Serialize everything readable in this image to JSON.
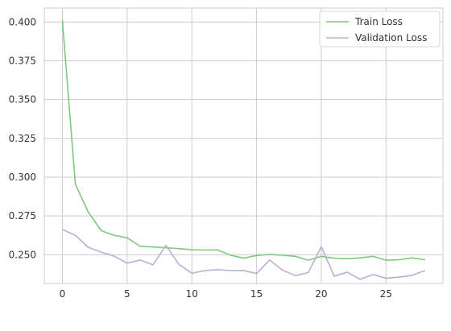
{
  "chart_data": {
    "type": "line",
    "title": "",
    "xlabel": "",
    "ylabel": "",
    "xlim": [
      -1.4,
      29.4
    ],
    "ylim": [
      0.2315,
      0.409
    ],
    "grid": true,
    "legend_position": "top-right",
    "x_ticks": [
      0,
      5,
      10,
      15,
      20,
      25
    ],
    "x_tick_labels": [
      "0",
      "5",
      "10",
      "15",
      "20",
      "25"
    ],
    "y_ticks": [
      0.25,
      0.275,
      0.3,
      0.325,
      0.35,
      0.375,
      0.4
    ],
    "y_tick_labels": [
      "0.250",
      "0.275",
      "0.300",
      "0.325",
      "0.350",
      "0.375",
      "0.400"
    ],
    "x": [
      0,
      1,
      2,
      3,
      4,
      5,
      6,
      7,
      8,
      9,
      10,
      11,
      12,
      13,
      14,
      15,
      16,
      17,
      18,
      19,
      20,
      21,
      22,
      23,
      24,
      25,
      26,
      27,
      28
    ],
    "series": [
      {
        "name": "Train Loss",
        "color": "#7fc97f",
        "values": [
          0.401,
          0.2955,
          0.2775,
          0.2655,
          0.2625,
          0.261,
          0.2555,
          0.255,
          0.2545,
          0.254,
          0.2532,
          0.2531,
          0.2531,
          0.2497,
          0.2478,
          0.2495,
          0.2502,
          0.2497,
          0.249,
          0.2465,
          0.249,
          0.2478,
          0.2475,
          0.248,
          0.249,
          0.2465,
          0.2468,
          0.248,
          0.2468
        ]
      },
      {
        "name": "Validation Loss",
        "color": "#beaed4",
        "values": [
          0.2663,
          0.2625,
          0.2548,
          0.2517,
          0.2491,
          0.2446,
          0.2466,
          0.2435,
          0.2561,
          0.2438,
          0.2381,
          0.2398,
          0.2404,
          0.2398,
          0.2399,
          0.2379,
          0.2466,
          0.2401,
          0.2366,
          0.2386,
          0.2552,
          0.2362,
          0.2388,
          0.2342,
          0.2372,
          0.2349,
          0.2356,
          0.2367,
          0.2398
        ]
      }
    ]
  }
}
